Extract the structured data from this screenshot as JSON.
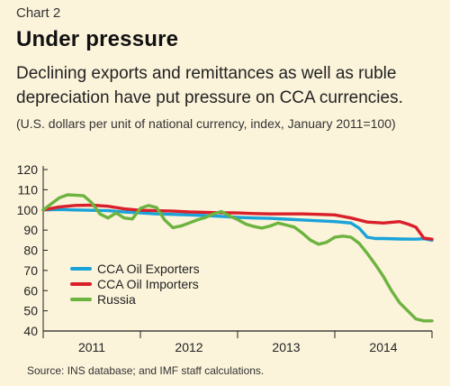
{
  "header": {
    "chart_number": "Chart 2",
    "title": "Under pressure",
    "subtitle": "Declining exports and remittances as well as ruble depreciation have put pressure on CCA currencies.",
    "units_note": "(U.S. dollars per unit of national currency, index, January 2011=100)"
  },
  "footer": {
    "source": "Source: INS database; and IMF staff calculations."
  },
  "chart_data": {
    "type": "line",
    "title": "Under pressure",
    "xlabel": "",
    "ylabel": "",
    "x_ticks": [
      "2011",
      "2012",
      "2013",
      "2014"
    ],
    "xlim": [
      0,
      48
    ],
    "ylim": [
      40,
      120
    ],
    "y_ticks": [
      40,
      50,
      60,
      70,
      80,
      90,
      100,
      110,
      120
    ],
    "grid": false,
    "legend_position": "bottom-left",
    "colors": {
      "background": "#fbf3da",
      "axis": "#222222"
    },
    "series": [
      {
        "name": "CCA Oil Exporters",
        "color": "#1aa3d9",
        "x": [
          0,
          2,
          4,
          6,
          8,
          10,
          12,
          14,
          16,
          18,
          20,
          22,
          24,
          26,
          28,
          30,
          32,
          34,
          36,
          38,
          39,
          40,
          41,
          42,
          44,
          46,
          47,
          48
        ],
        "y": [
          100,
          100.2,
          100,
          99.8,
          99.6,
          99,
          98.5,
          98,
          97.8,
          97.5,
          97.2,
          96.8,
          96.3,
          96,
          95.8,
          95.4,
          95,
          94.6,
          94.2,
          93.5,
          91,
          86.5,
          85.8,
          85.8,
          85.6,
          85.5,
          85.7,
          85
        ]
      },
      {
        "name": "CCA Oil Importers",
        "color": "#d9202a",
        "x": [
          0,
          2,
          4,
          6,
          8,
          10,
          12,
          14,
          16,
          18,
          20,
          22,
          24,
          26,
          28,
          30,
          32,
          34,
          36,
          38,
          40,
          42,
          44,
          45,
          46,
          47,
          48
        ],
        "y": [
          100,
          101.5,
          102.2,
          102.4,
          101.8,
          100.5,
          99.8,
          99.6,
          99.4,
          99,
          98.8,
          98.6,
          98.5,
          98.2,
          98,
          98,
          98,
          97.8,
          97.5,
          96,
          94,
          93.5,
          94.2,
          93,
          91.5,
          86,
          85.5
        ]
      },
      {
        "name": "Russia",
        "color": "#6db33f",
        "x": [
          0,
          1,
          2,
          3,
          4,
          5,
          6,
          7,
          8,
          9,
          10,
          11,
          12,
          13,
          14,
          15,
          16,
          17,
          18,
          19,
          20,
          21,
          22,
          23,
          24,
          25,
          26,
          27,
          28,
          29,
          30,
          31,
          32,
          33,
          34,
          35,
          36,
          37,
          38,
          39,
          40,
          41,
          42,
          43,
          44,
          45,
          46,
          47,
          48
        ],
        "y": [
          100,
          103,
          106,
          107.5,
          107.3,
          107,
          103.5,
          98,
          96,
          98.5,
          96,
          95.5,
          100.8,
          102.2,
          101.2,
          95,
          91.2,
          92,
          93.5,
          95,
          96.2,
          98,
          99.2,
          97,
          95.2,
          93,
          91.8,
          91,
          92,
          93.5,
          92.5,
          91.5,
          88.5,
          85,
          83,
          84,
          86.5,
          87,
          86.5,
          83.5,
          78.5,
          73,
          67,
          60,
          54,
          50,
          46,
          45,
          45
        ]
      }
    ]
  }
}
